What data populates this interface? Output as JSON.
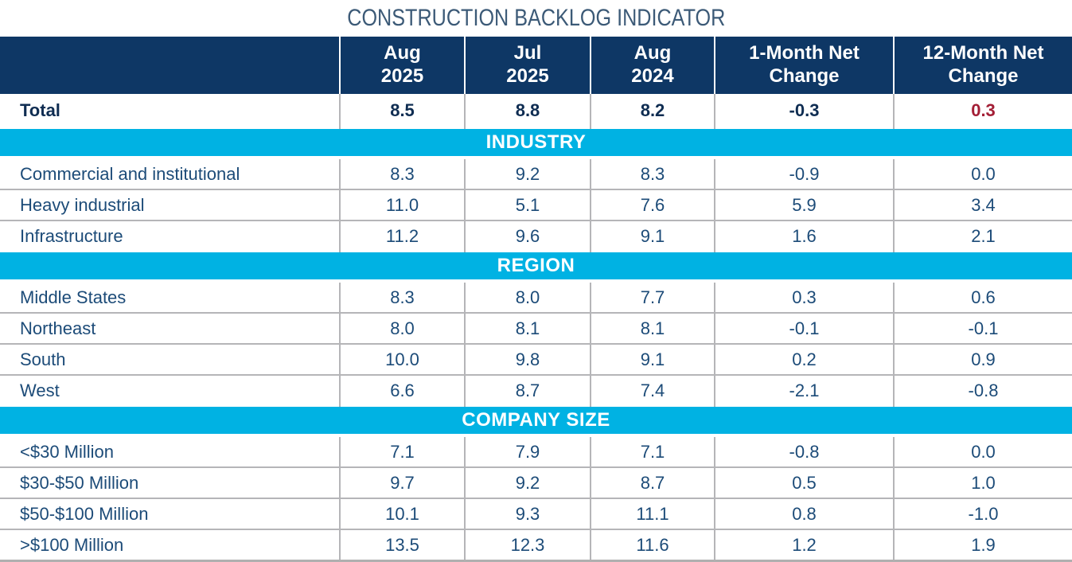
{
  "title": "CONSTRUCTION BACKLOG INDICATOR",
  "colors": {
    "header_navy": "#0e3765",
    "band_cyan": "#00b2e3",
    "accent_red": "#a31e35",
    "body_text_navy": "#1c4b78",
    "total_text_navy": "#0f2d52",
    "grid_gray": "#b5b5b8",
    "title_blue_gray": "#3c5a77"
  },
  "header": {
    "cols": [
      "",
      "Aug\n2025",
      "Jul\n2025",
      "Aug\n2024",
      "1-Month Net\nChange",
      "12-Month Net\nChange"
    ]
  },
  "rows": [
    {
      "type": "total",
      "label": "Total",
      "values": [
        "8.5",
        "8.8",
        "8.2",
        "-0.3",
        "0.3"
      ],
      "red_value_indices": [
        4
      ]
    },
    {
      "type": "band",
      "label": "INDUSTRY"
    },
    {
      "type": "data",
      "label": "Commercial and institutional",
      "values": [
        "8.3",
        "9.2",
        "8.3",
        "-0.9",
        "0.0"
      ]
    },
    {
      "type": "data",
      "label": "Heavy industrial",
      "values": [
        "11.0",
        "5.1",
        "7.6",
        "5.9",
        "3.4"
      ]
    },
    {
      "type": "data",
      "label": "Infrastructure",
      "values": [
        "11.2",
        "9.6",
        "9.1",
        "1.6",
        "2.1"
      ],
      "last_before_band": true
    },
    {
      "type": "band",
      "label": "REGION"
    },
    {
      "type": "data",
      "label": "Middle States",
      "values": [
        "8.3",
        "8.0",
        "7.7",
        "0.3",
        "0.6"
      ]
    },
    {
      "type": "data",
      "label": "Northeast",
      "values": [
        "8.0",
        "8.1",
        "8.1",
        "-0.1",
        "-0.1"
      ]
    },
    {
      "type": "data",
      "label": "South",
      "values": [
        "10.0",
        "9.8",
        "9.1",
        "0.2",
        "0.9"
      ]
    },
    {
      "type": "data",
      "label": "West",
      "values": [
        "6.6",
        "8.7",
        "7.4",
        "-2.1",
        "-0.8"
      ],
      "last_before_band": true
    },
    {
      "type": "band",
      "label": "COMPANY SIZE"
    },
    {
      "type": "data",
      "label": "<$30 Million",
      "values": [
        "7.1",
        "7.9",
        "7.1",
        "-0.8",
        "0.0"
      ]
    },
    {
      "type": "data",
      "label": "$30-$50 Million",
      "values": [
        "9.7",
        "9.2",
        "8.7",
        "0.5",
        "1.0"
      ]
    },
    {
      "type": "data",
      "label": "$50-$100 Million",
      "values": [
        "10.1",
        "9.3",
        "11.1",
        "0.8",
        "-1.0"
      ]
    },
    {
      "type": "data",
      "label": ">$100 Million",
      "values": [
        "13.5",
        "12.3",
        "11.6",
        "1.2",
        "1.9"
      ],
      "last_row": true
    }
  ],
  "chart_data": {
    "type": "table",
    "title": "CONSTRUCTION BACKLOG INDICATOR",
    "columns": [
      "",
      "Aug 2025",
      "Jul 2025",
      "Aug 2024",
      "1-Month Net Change",
      "12-Month Net Change"
    ],
    "sections": [
      {
        "name": "",
        "rows": [
          [
            "Total",
            8.5,
            8.8,
            8.2,
            -0.3,
            0.3
          ]
        ]
      },
      {
        "name": "INDUSTRY",
        "rows": [
          [
            "Commercial and institutional",
            8.3,
            9.2,
            8.3,
            -0.9,
            0.0
          ],
          [
            "Heavy industrial",
            11.0,
            5.1,
            7.6,
            5.9,
            3.4
          ],
          [
            "Infrastructure",
            11.2,
            9.6,
            9.1,
            1.6,
            2.1
          ]
        ]
      },
      {
        "name": "REGION",
        "rows": [
          [
            "Middle States",
            8.3,
            8.0,
            7.7,
            0.3,
            0.6
          ],
          [
            "Northeast",
            8.0,
            8.1,
            8.1,
            -0.1,
            -0.1
          ],
          [
            "South",
            10.0,
            9.8,
            9.1,
            0.2,
            0.9
          ],
          [
            "West",
            6.6,
            8.7,
            7.4,
            -2.1,
            -0.8
          ]
        ]
      },
      {
        "name": "COMPANY SIZE",
        "rows": [
          [
            "<$30 Million",
            7.1,
            7.9,
            7.1,
            -0.8,
            0.0
          ],
          [
            "$30-$50 Million",
            9.7,
            9.2,
            8.7,
            0.5,
            1.0
          ],
          [
            "$50-$100 Million",
            10.1,
            9.3,
            11.1,
            0.8,
            -1.0
          ],
          [
            ">$100 Million",
            13.5,
            12.3,
            11.6,
            1.2,
            1.9
          ]
        ]
      }
    ]
  }
}
